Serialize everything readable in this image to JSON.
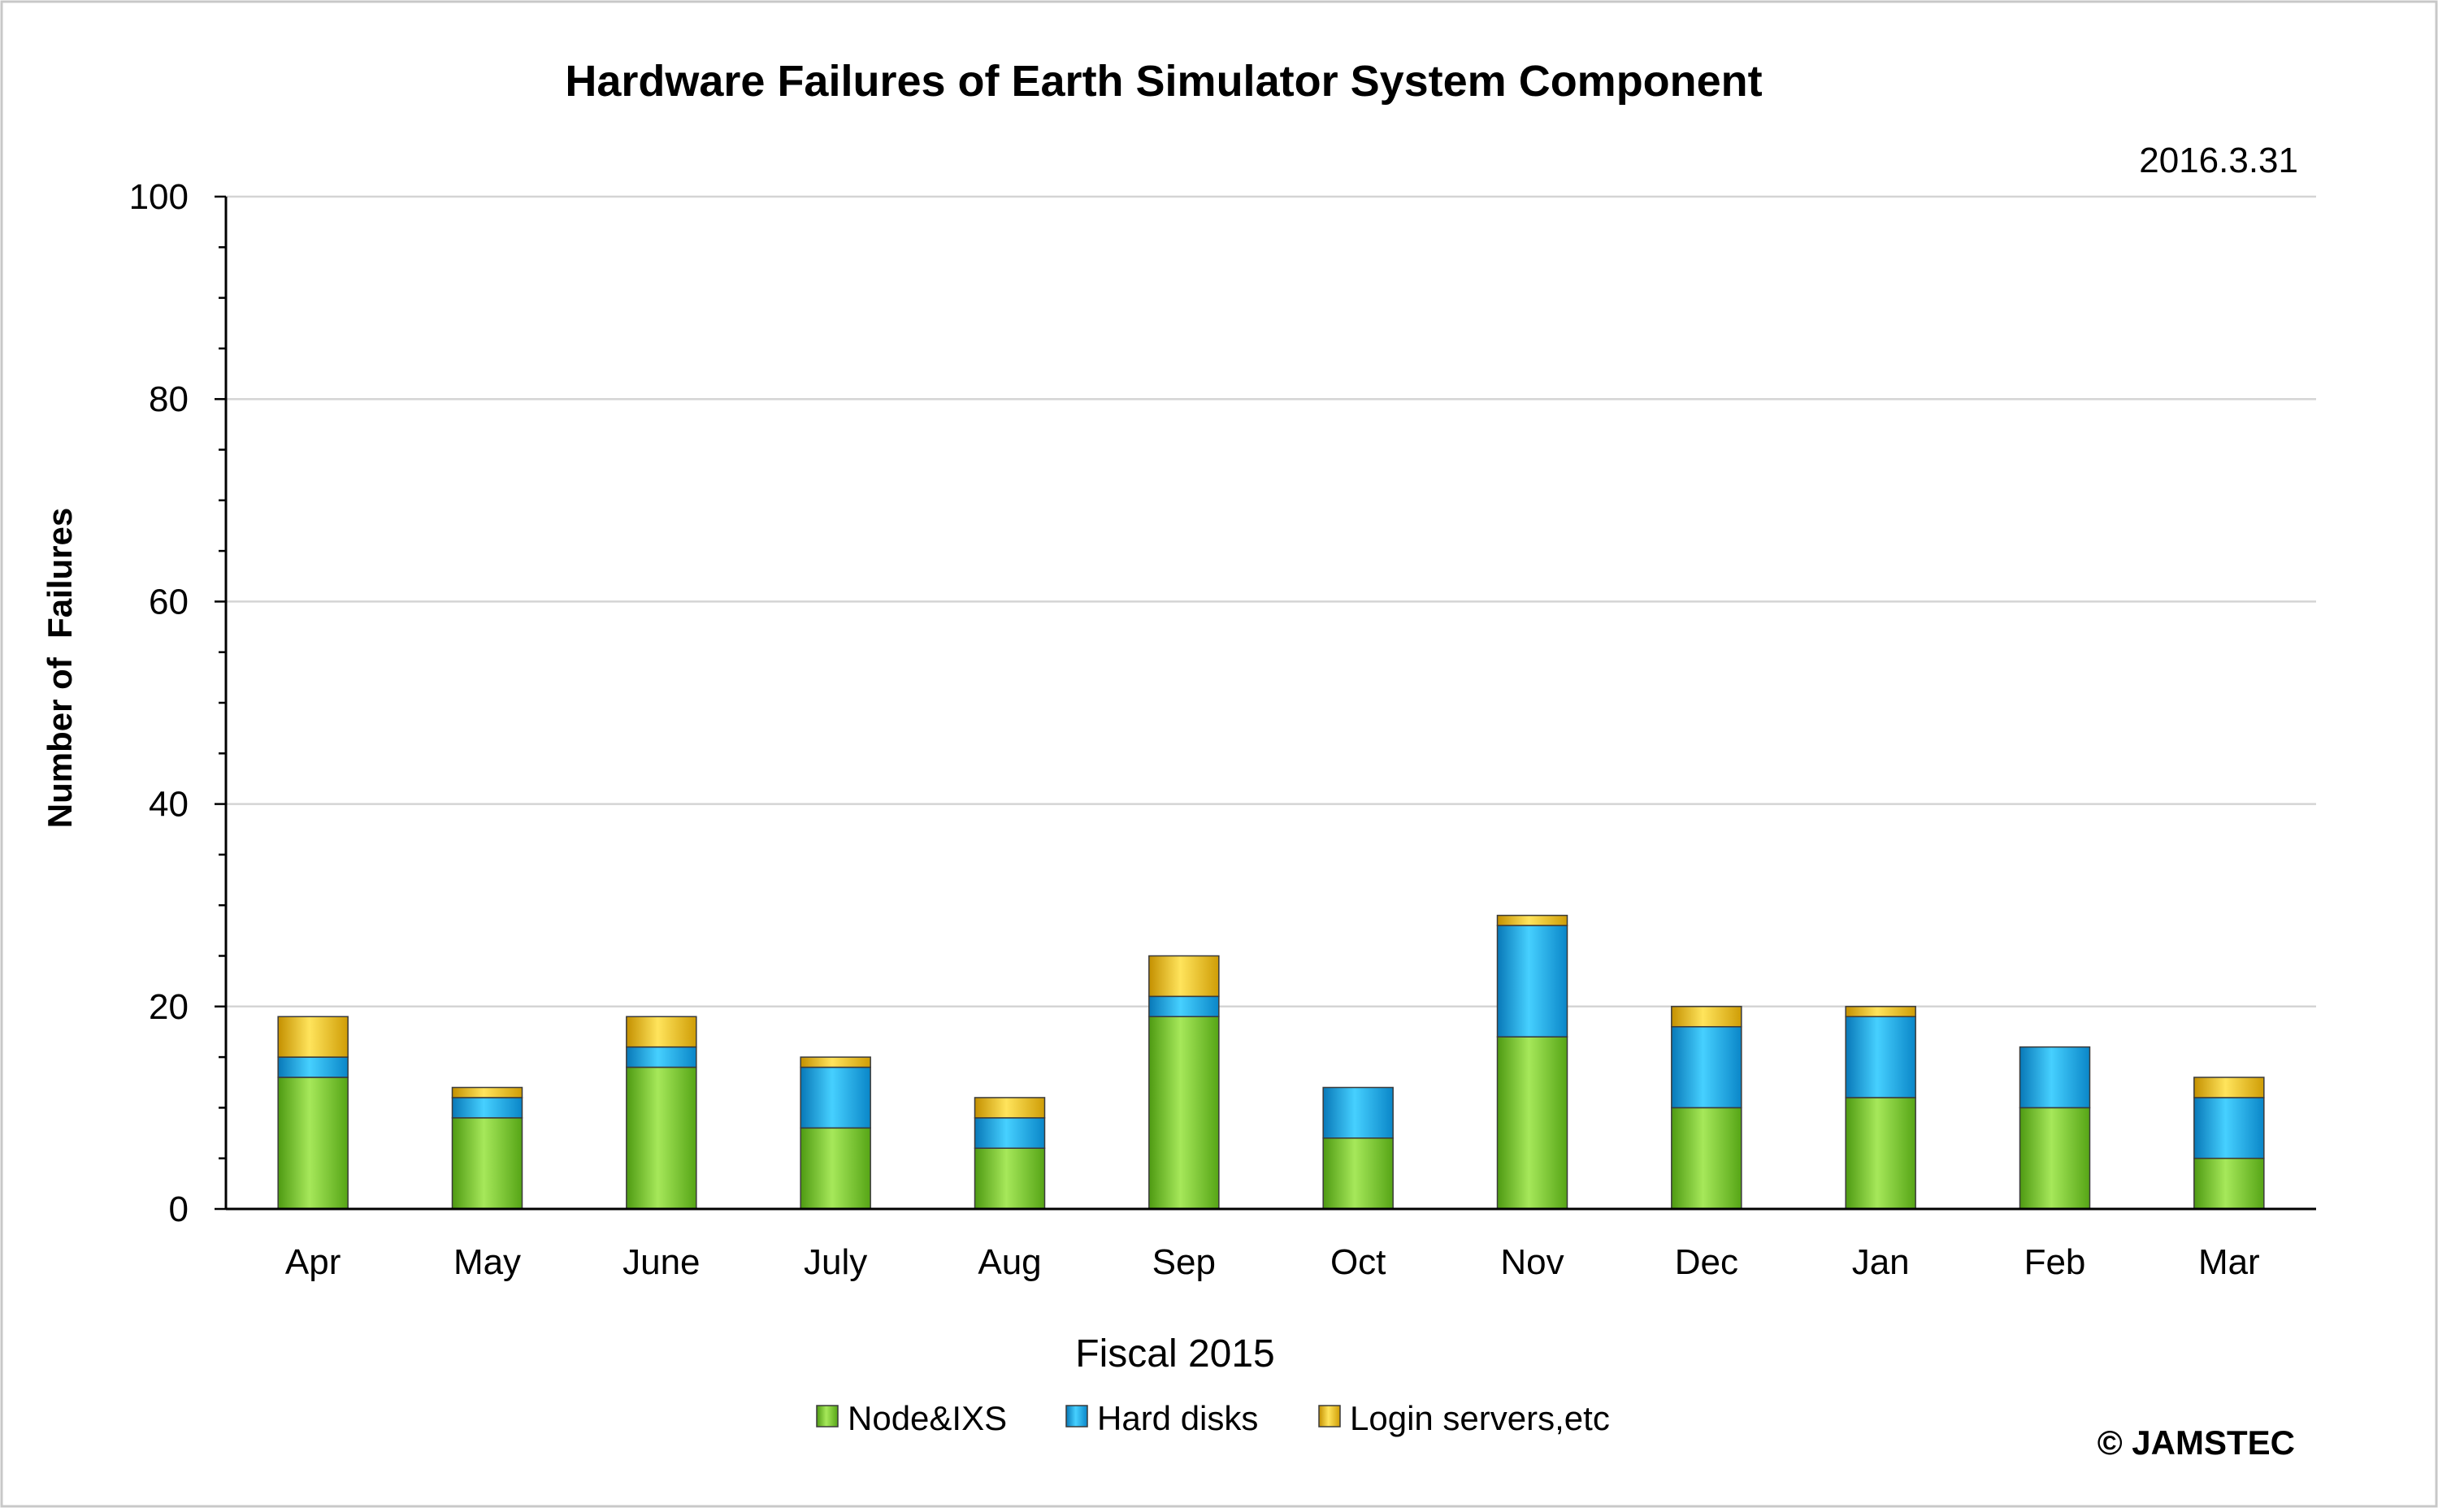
{
  "chart_data": {
    "type": "bar",
    "stacked": true,
    "title": "Hardware Failures of Earth Simulator System Component",
    "subtitle": "2016.3.31",
    "xlabel": "Fiscal 2015",
    "ylabel": "Number of  Failures",
    "ylim": [
      0,
      100
    ],
    "yticks": [
      0,
      20,
      40,
      60,
      80,
      100
    ],
    "grid": true,
    "legend_position": "bottom",
    "categories": [
      "Apr",
      "May",
      "June",
      "July",
      "Aug",
      "Sep",
      "Oct",
      "Nov",
      "Dec",
      "Jan",
      "Feb",
      "Mar"
    ],
    "series": [
      {
        "name": "Node&IXS",
        "color": "#7ed321",
        "values": [
          13,
          9,
          14,
          8,
          6,
          19,
          7,
          17,
          10,
          11,
          10,
          5
        ]
      },
      {
        "name": "Hard disks",
        "color": "#14a9e6",
        "values": [
          2,
          2,
          2,
          6,
          3,
          2,
          5,
          11,
          8,
          8,
          6,
          6
        ]
      },
      {
        "name": "Login servers,etc",
        "color": "#f2c318",
        "values": [
          4,
          1,
          3,
          1,
          2,
          4,
          0,
          1,
          2,
          1,
          0,
          2
        ]
      }
    ],
    "copyright": "© JAMSTEC"
  }
}
